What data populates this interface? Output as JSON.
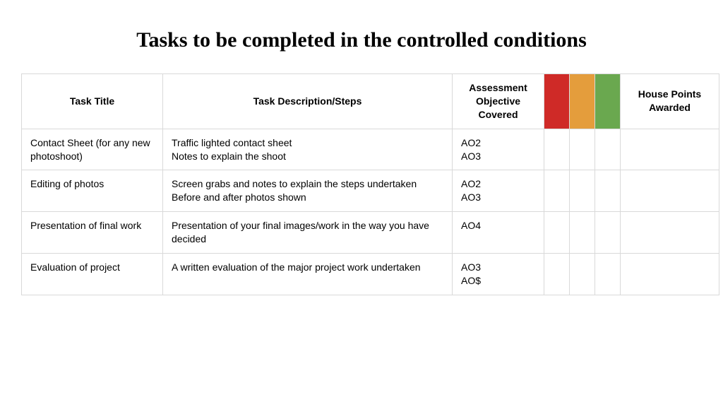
{
  "title": "Tasks to be completed in the controlled conditions",
  "colors": {
    "red": "#cf2a27",
    "amber": "#e49d3c",
    "green": "#6aa84f",
    "border": "#d9d9d9",
    "bg": "#ffffff"
  },
  "table": {
    "columns": {
      "task_title": "Task Title",
      "task_desc": "Task Description/Steps",
      "ao_covered": "Assessment Objective Covered",
      "house_points": "House Points Awarded"
    },
    "rows": [
      {
        "title": "Contact Sheet (for any new photoshoot)",
        "desc": "Traffic lighted contact sheet\nNotes to explain the shoot",
        "ao": "AO2\nAO3"
      },
      {
        "title": "Editing of photos",
        "desc": "Screen grabs and notes to explain the steps undertaken\nBefore and after photos shown",
        "ao": "AO2\nAO3"
      },
      {
        "title": "Presentation of final work",
        "desc": "Presentation of your final images/work in the way you have decided",
        "ao": "AO4"
      },
      {
        "title": "Evaluation of project",
        "desc": "A written evaluation of the major project work undertaken",
        "ao": "AO3\nAO$"
      }
    ]
  }
}
